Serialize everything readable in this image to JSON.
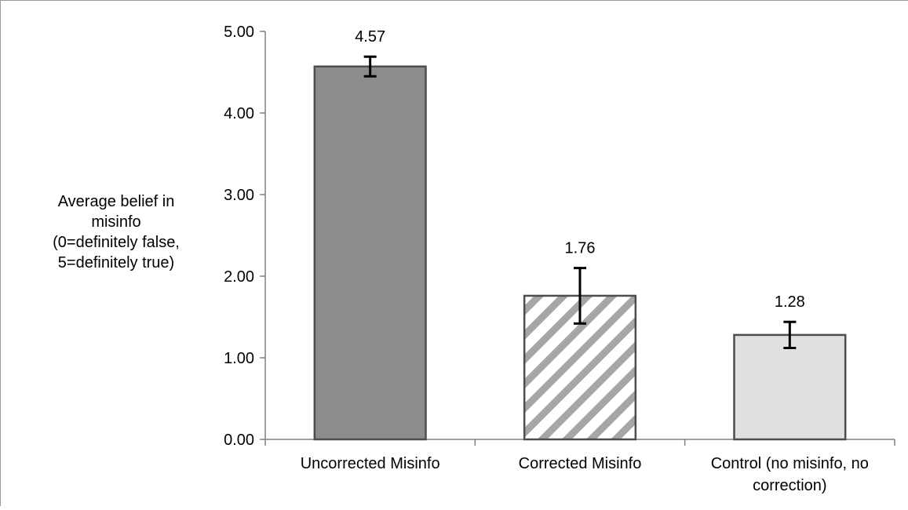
{
  "chart_data": {
    "type": "bar",
    "title": "",
    "xlabel": "",
    "ylabel_lines": [
      "Average belief in",
      "misinfo",
      "(0=definitely false,",
      "5=definitely true)"
    ],
    "ylim": [
      0,
      5
    ],
    "yticks": [
      "0.00",
      "1.00",
      "2.00",
      "3.00",
      "4.00",
      "5.00"
    ],
    "grid": false,
    "legend": "none",
    "categories": [
      {
        "lines": [
          "Uncorrected Misinfo"
        ]
      },
      {
        "lines": [
          "Corrected Misinfo"
        ]
      },
      {
        "lines": [
          "Control (no misinfo, no",
          "correction)"
        ]
      }
    ],
    "values": [
      4.57,
      1.76,
      1.28
    ],
    "value_labels": [
      "4.57",
      "1.76",
      "1.28"
    ],
    "error_bars": [
      {
        "low": 4.45,
        "high": 4.69
      },
      {
        "low": 1.42,
        "high": 2.1
      },
      {
        "low": 1.12,
        "high": 1.44
      }
    ],
    "bar_fills": [
      "solid-dark-gray",
      "diagonal-hatch",
      "solid-light-gray"
    ],
    "colors": {
      "bar_dark": "#8c8c8c",
      "bar_light": "#e0e0e0",
      "hatch_stripe": "#a6a6a6",
      "bar_edge": "#4d4d4d",
      "axis": "#808080",
      "frame": "#999999",
      "error_bar": "#000000"
    }
  }
}
